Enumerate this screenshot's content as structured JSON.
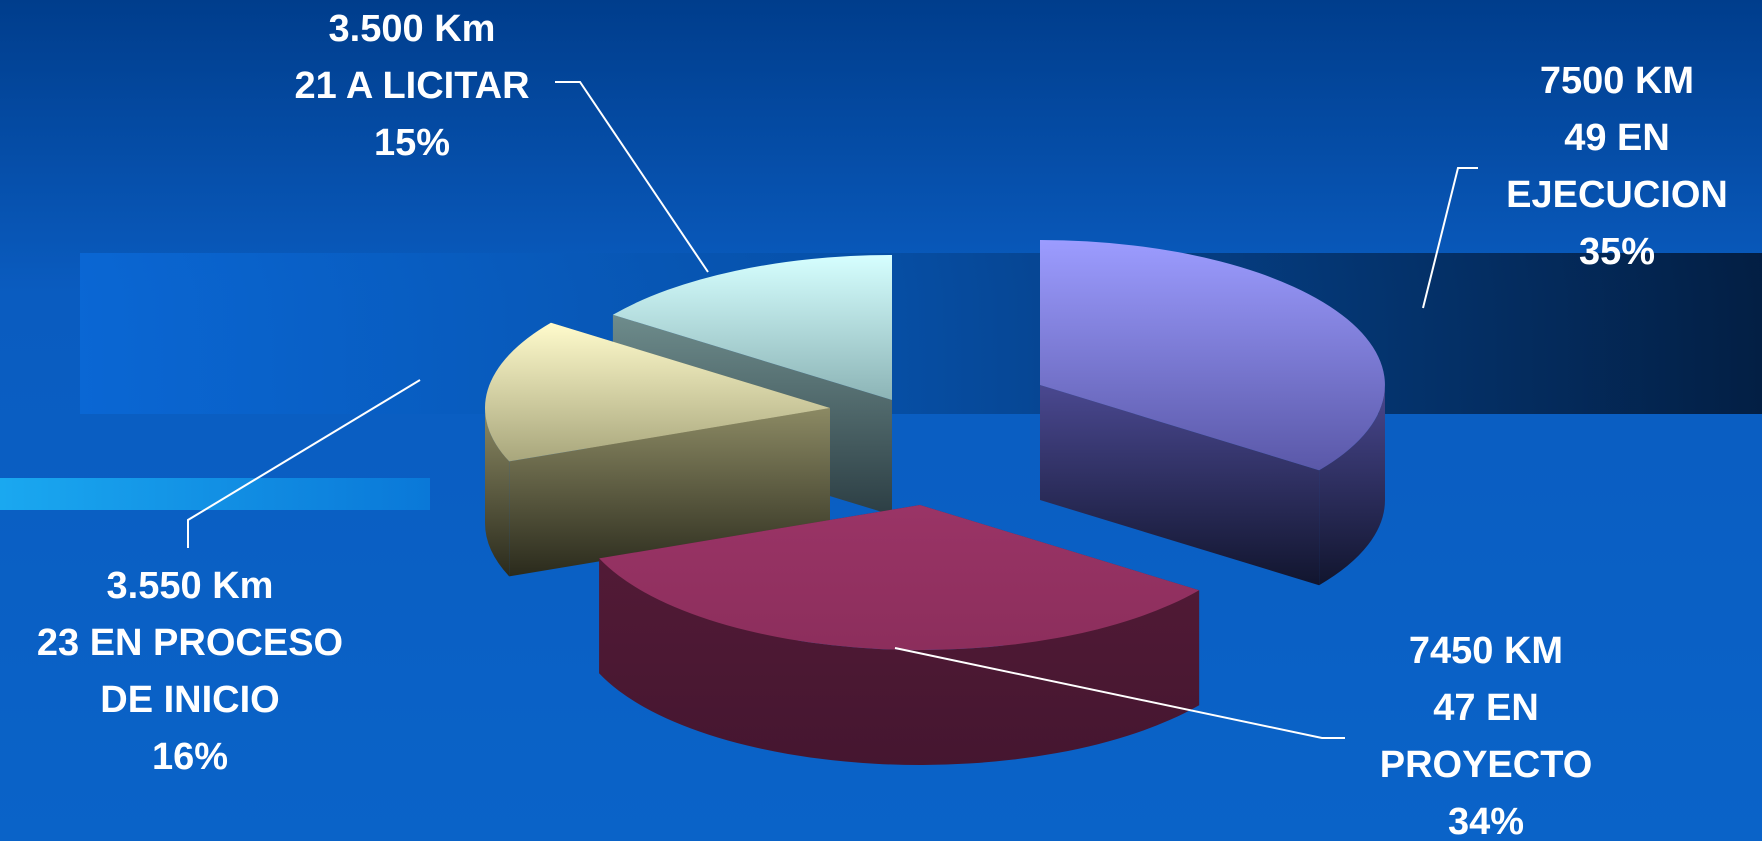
{
  "chart_data": {
    "type": "pie",
    "title": "",
    "legend": "none",
    "slices": [
      {
        "km": "7500 KM",
        "count": 49,
        "status_lines": [
          "49 EN",
          "EJECUCION"
        ],
        "percent": "35%",
        "value": 35,
        "color": "#9b9bff"
      },
      {
        "km": "7450 KM",
        "count": 47,
        "status_lines": [
          "47 EN",
          "PROYECTO"
        ],
        "percent": "34%",
        "value": 34,
        "color": "#993366"
      },
      {
        "km": "3.550 Km",
        "count": 23,
        "status_lines": [
          "23 EN PROCESO",
          "DE INICIO"
        ],
        "percent": "16%",
        "value": 16,
        "color": "#ffffcc"
      },
      {
        "km": "3.500 Km",
        "count": 21,
        "status_lines": [
          "21 A LICITAR"
        ],
        "percent": "15%",
        "value": 15,
        "color": "#ccffff"
      }
    ]
  }
}
